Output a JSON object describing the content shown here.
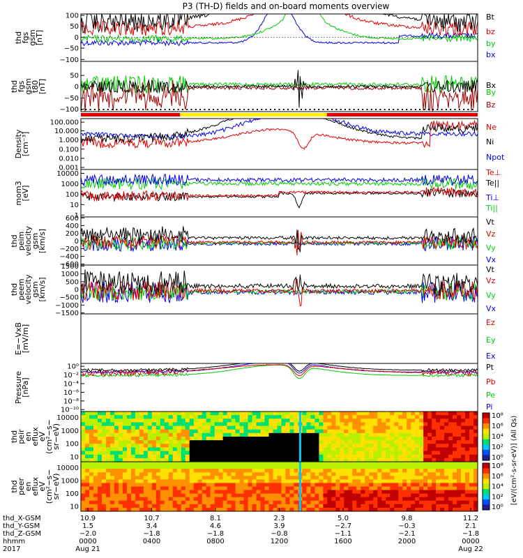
{
  "title": "P3 (TH-D) fields and on-board moments overview",
  "panels": [
    {
      "id": "fgs",
      "lines": [
        "thd",
        "fgs",
        "gsm",
        "[nT]"
      ],
      "ticks": [
        "100",
        "50",
        "0",
        "−50",
        "−100"
      ],
      "legend": [
        {
          "text": "Bt",
          "color": "#000000"
        },
        {
          "text": "bz",
          "color": "#e00000"
        },
        {
          "text": "by",
          "color": "#00cc00"
        },
        {
          "text": "bx",
          "color": "#0000ee"
        }
      ]
    },
    {
      "id": "fgs2",
      "lines": [
        "thd",
        "fgs",
        "gsm",
        "t80",
        "[nT]"
      ],
      "ticks": [
        "50",
        "0",
        "−50",
        "−100"
      ],
      "legend": [
        {
          "text": "Bx",
          "color": "#000000"
        },
        {
          "text": "By",
          "color": "#00cc00"
        },
        {
          "text": "Bz",
          "color": "#a00000"
        }
      ]
    },
    {
      "id": "density",
      "lines": [
        "Density",
        "[cm⁻³]"
      ],
      "ticks": [
        "100.000",
        "10.000",
        "1.000",
        "0.100",
        "0.010",
        "0.001"
      ],
      "legend": [
        {
          "text": "Ne",
          "color": "#e00000"
        },
        {
          "text": "Ni",
          "color": "#000000"
        },
        {
          "text": "Npot",
          "color": "#0000ee"
        }
      ]
    },
    {
      "id": "temp",
      "lines": [
        "mom3",
        "[eV]"
      ],
      "ticks": [
        "10000",
        "1000",
        "100",
        "10",
        "1"
      ],
      "legend": [
        {
          "text": "Te⊥",
          "color": "#e00000"
        },
        {
          "text": "Te||",
          "color": "#000000"
        },
        {
          "text": "Ti⊥",
          "color": "#0000ee"
        },
        {
          "text": "Ti||",
          "color": "#00cc00"
        }
      ]
    },
    {
      "id": "peim",
      "lines": [
        "thd",
        "peim",
        "velocity",
        "gsm",
        "[km/s]"
      ],
      "ticks": [
        "600",
        "400",
        "200",
        "0",
        "−200",
        "−400",
        "−600"
      ],
      "legend": [
        {
          "text": "Vt",
          "color": "#000000"
        },
        {
          "text": "Vz",
          "color": "#e00000"
        },
        {
          "text": "Vy",
          "color": "#00cc00"
        },
        {
          "text": "Vx",
          "color": "#0000ee"
        }
      ]
    },
    {
      "id": "peem",
      "lines": [
        "thd",
        "peem",
        "velocity",
        "gsm",
        "[km/s]"
      ],
      "ticks": [
        "1500",
        "1000",
        "500",
        "0",
        "−500",
        "−1000",
        "−1500"
      ],
      "legend": [
        {
          "text": "Vt",
          "color": "#000000"
        },
        {
          "text": "Vz",
          "color": "#e00000"
        },
        {
          "text": "Vy",
          "color": "#00cc00"
        },
        {
          "text": "Vx",
          "color": "#0000ee"
        }
      ]
    },
    {
      "id": "efield",
      "lines": [
        "E=−VxB",
        "[mV/m]"
      ],
      "ticks": [],
      "legend": [
        {
          "text": "Ez",
          "color": "#e00000"
        },
        {
          "text": "Ey",
          "color": "#00cc00"
        },
        {
          "text": "Ex",
          "color": "#0000ee"
        }
      ]
    },
    {
      "id": "pressure",
      "lines": [
        "Pressure",
        "[nPa]"
      ],
      "ticks": [
        "10⁰",
        "10⁻²",
        "10⁻⁴",
        "10⁻⁶",
        "10⁻⁸",
        "10⁻¹⁰"
      ],
      "legend": [
        {
          "text": "Pt",
          "color": "#000000"
        },
        {
          "text": "Pb",
          "color": "#e00000"
        },
        {
          "text": "Pe",
          "color": "#00cc00"
        },
        {
          "text": "Pi",
          "color": "#0000ee"
        }
      ]
    },
    {
      "id": "peir",
      "lines": [
        "thd",
        "peir",
        "en",
        "eflux",
        "eV",
        "(cm²−s−",
        "sr−eV)"
      ],
      "ticks": [
        "10000",
        "1000",
        "100",
        "10"
      ],
      "legend": []
    },
    {
      "id": "peer",
      "lines": [
        "thd",
        "peer",
        "en",
        "eflux",
        "eV",
        "(cm²−s−",
        "sr−eV)"
      ],
      "ticks": [
        "10000",
        "1000",
        "100",
        "10"
      ],
      "legend": []
    }
  ],
  "colorbars": {
    "ticks": [
      "10⁸",
      "10⁶",
      "10⁴",
      "10²",
      "10⁰"
    ],
    "label": "[eV/(cm²-s-sr-eV)] (All Qs)"
  },
  "region_bar": {
    "segments": [
      {
        "start": 0,
        "end": 0.25,
        "color": "#e00000"
      },
      {
        "start": 0.25,
        "end": 0.62,
        "color": "#ffee00"
      },
      {
        "start": 0.62,
        "end": 1.0,
        "color": "#e00000"
      }
    ]
  },
  "xaxis": {
    "row_labels": [
      "thd_X-GSM",
      "thd_Y-GSM",
      "thd_Z-GSM",
      "hhmm",
      "2017"
    ],
    "columns": [
      [
        "10.9",
        "1.5",
        "−2.0",
        "0000",
        "Aug 21"
      ],
      [
        "10.7",
        "3.4",
        "−1.8",
        "0400",
        ""
      ],
      [
        "8.1",
        "4.6",
        "−1.8",
        "0800",
        ""
      ],
      [
        "2.3",
        "3.9",
        "−0.8",
        "1200",
        ""
      ],
      [
        "5.0",
        "−2.7",
        "−1.1",
        "1600",
        ""
      ],
      [
        "9.8",
        "−0.3",
        "−2.1",
        "2000",
        ""
      ],
      [
        "11.2",
        "2.1",
        "−1.8",
        "0000",
        "Aug 22"
      ]
    ]
  },
  "colors": {
    "red": "#e00000",
    "green": "#00cc00",
    "blue": "#0000ee",
    "black": "#000000",
    "yellow": "#ffee00",
    "darkred": "#a00000"
  }
}
